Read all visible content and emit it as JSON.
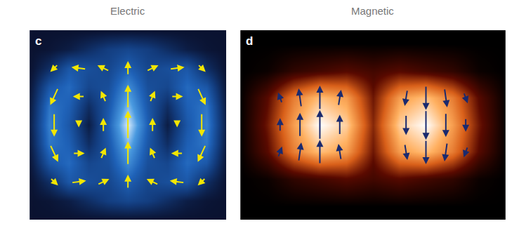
{
  "chart_data": [
    {
      "type": "heatmap",
      "title": "Electric",
      "panel_label": "c",
      "tick_labels": false,
      "xlim": [
        -1,
        1
      ],
      "ylim": [
        -1,
        1
      ],
      "colors": [
        "#0a1230",
        "#123a7a",
        "#1f62b8",
        "#4a9ae0",
        "#d8ecff"
      ],
      "x": [
        -1,
        -0.8,
        -0.6,
        -0.4,
        -0.2,
        0,
        0.2,
        0.4,
        0.6,
        0.8,
        1
      ],
      "y": [
        -1,
        -0.8,
        -0.6,
        -0.4,
        -0.2,
        0,
        0.2,
        0.4,
        0.6,
        0.8,
        1
      ],
      "z": [
        [
          0.03,
          0.03,
          0.03,
          0.03,
          0.03,
          0.03,
          0.03,
          0.03,
          0.03,
          0.03,
          0.03
        ],
        [
          0.03,
          0.05,
          0.1,
          0.2,
          0.3,
          0.35,
          0.3,
          0.2,
          0.1,
          0.05,
          0.03
        ],
        [
          0.03,
          0.2,
          0.45,
          0.4,
          0.35,
          0.5,
          0.35,
          0.4,
          0.45,
          0.2,
          0.03
        ],
        [
          0.05,
          0.45,
          0.55,
          0.35,
          0.4,
          0.7,
          0.4,
          0.35,
          0.55,
          0.45,
          0.05
        ],
        [
          0.08,
          0.6,
          0.5,
          0.2,
          0.45,
          0.85,
          0.45,
          0.2,
          0.5,
          0.6,
          0.08
        ],
        [
          0.1,
          0.65,
          0.45,
          0.1,
          0.5,
          1.0,
          0.5,
          0.1,
          0.45,
          0.65,
          0.1
        ],
        [
          0.08,
          0.6,
          0.5,
          0.2,
          0.45,
          0.85,
          0.45,
          0.2,
          0.5,
          0.6,
          0.08
        ],
        [
          0.05,
          0.45,
          0.55,
          0.35,
          0.4,
          0.7,
          0.4,
          0.35,
          0.55,
          0.45,
          0.05
        ],
        [
          0.03,
          0.2,
          0.45,
          0.4,
          0.35,
          0.5,
          0.35,
          0.4,
          0.45,
          0.2,
          0.03
        ],
        [
          0.03,
          0.05,
          0.1,
          0.2,
          0.3,
          0.35,
          0.3,
          0.2,
          0.1,
          0.05,
          0.03
        ],
        [
          0.03,
          0.03,
          0.03,
          0.03,
          0.03,
          0.03,
          0.03,
          0.03,
          0.03,
          0.03,
          0.03
        ]
      ],
      "arrows": {
        "color": "#f2e600",
        "vectors": [
          [
            -0.75,
            0.6,
            -0.08,
            -0.08
          ],
          [
            -0.5,
            0.6,
            -0.15,
            0.02
          ],
          [
            -0.25,
            0.6,
            -0.12,
            0.06
          ],
          [
            0,
            0.6,
            0,
            0.15
          ],
          [
            0.25,
            0.6,
            0.12,
            0.06
          ],
          [
            0.5,
            0.6,
            0.15,
            0.02
          ],
          [
            0.75,
            0.6,
            0.08,
            -0.08
          ],
          [
            -0.75,
            0.3,
            -0.08,
            -0.18
          ],
          [
            -0.5,
            0.3,
            -0.12,
            0
          ],
          [
            -0.25,
            0.3,
            -0.05,
            0.12
          ],
          [
            0,
            0.3,
            0,
            0.25
          ],
          [
            0.25,
            0.3,
            0.05,
            0.12
          ],
          [
            0.5,
            0.3,
            0.12,
            0
          ],
          [
            0.75,
            0.3,
            0.08,
            -0.18
          ],
          [
            -0.75,
            0,
            0,
            -0.25
          ],
          [
            -0.5,
            0,
            0,
            -0.05
          ],
          [
            -0.25,
            0,
            0,
            0.15
          ],
          [
            0,
            0,
            0,
            0.3
          ],
          [
            0.25,
            0,
            0,
            0.15
          ],
          [
            0.5,
            0,
            0,
            -0.05
          ],
          [
            0.75,
            0,
            0,
            -0.25
          ],
          [
            -0.75,
            -0.3,
            0.08,
            -0.18
          ],
          [
            -0.5,
            -0.3,
            0.12,
            0
          ],
          [
            -0.25,
            -0.3,
            0.05,
            0.12
          ],
          [
            0,
            -0.3,
            0,
            0.25
          ],
          [
            0.25,
            -0.3,
            -0.05,
            0.12
          ],
          [
            0.5,
            -0.3,
            -0.12,
            0
          ],
          [
            0.75,
            -0.3,
            -0.08,
            -0.18
          ],
          [
            -0.75,
            -0.6,
            0.08,
            -0.08
          ],
          [
            -0.5,
            -0.6,
            0.15,
            0.02
          ],
          [
            -0.25,
            -0.6,
            0.12,
            0.06
          ],
          [
            0,
            -0.6,
            0,
            0.15
          ],
          [
            0.25,
            -0.6,
            -0.12,
            0.06
          ],
          [
            0.5,
            -0.6,
            -0.15,
            0.02
          ],
          [
            0.75,
            -0.6,
            -0.08,
            -0.08
          ]
        ]
      }
    },
    {
      "type": "heatmap",
      "title": "Magnetic",
      "panel_label": "d",
      "tick_labels": false,
      "xlim": [
        -1,
        1
      ],
      "ylim": [
        -0.7,
        0.7
      ],
      "colors": [
        "#000000",
        "#5a0a00",
        "#d9601a",
        "#ffb060",
        "#ffffff"
      ],
      "x": [
        -1,
        -0.8,
        -0.6,
        -0.4,
        -0.2,
        0,
        0.2,
        0.4,
        0.6,
        0.8,
        1
      ],
      "y": [
        -0.6,
        -0.4,
        -0.2,
        0,
        0.2,
        0.4,
        0.6
      ],
      "z": [
        [
          0.02,
          0.02,
          0.02,
          0.02,
          0.02,
          0.02,
          0.02,
          0.02,
          0.02,
          0.02,
          0.02
        ],
        [
          0.02,
          0.05,
          0.15,
          0.2,
          0.25,
          0.2,
          0.25,
          0.2,
          0.15,
          0.05,
          0.02
        ],
        [
          0.03,
          0.25,
          0.6,
          0.8,
          0.7,
          0.3,
          0.7,
          0.8,
          0.6,
          0.25,
          0.03
        ],
        [
          0.03,
          0.3,
          0.7,
          1.0,
          0.85,
          0.35,
          0.85,
          1.0,
          0.7,
          0.3,
          0.03
        ],
        [
          0.03,
          0.25,
          0.6,
          0.8,
          0.7,
          0.3,
          0.7,
          0.8,
          0.6,
          0.25,
          0.03
        ],
        [
          0.02,
          0.05,
          0.15,
          0.2,
          0.25,
          0.2,
          0.25,
          0.2,
          0.15,
          0.05,
          0.02
        ],
        [
          0.02,
          0.02,
          0.02,
          0.02,
          0.02,
          0.02,
          0.02,
          0.02,
          0.02,
          0.02,
          0.02
        ]
      ],
      "arrows": {
        "color": "#1a2a6e",
        "vectors": [
          [
            -0.7,
            -0.2,
            0.03,
            0.08
          ],
          [
            -0.7,
            0,
            0,
            0.1
          ],
          [
            -0.7,
            0.2,
            -0.03,
            0.08
          ],
          [
            -0.55,
            -0.2,
            0.02,
            0.14
          ],
          [
            -0.55,
            0,
            0,
            0.18
          ],
          [
            -0.55,
            0.2,
            -0.02,
            0.14
          ],
          [
            -0.4,
            -0.2,
            0,
            0.18
          ],
          [
            -0.4,
            0,
            0,
            0.22
          ],
          [
            -0.4,
            0.2,
            0,
            0.18
          ],
          [
            -0.25,
            -0.2,
            -0.02,
            0.12
          ],
          [
            -0.25,
            0,
            0,
            0.15
          ],
          [
            -0.25,
            0.2,
            0.02,
            0.12
          ],
          [
            0.25,
            -0.2,
            0.02,
            -0.12
          ],
          [
            0.25,
            0,
            0,
            -0.15
          ],
          [
            0.25,
            0.2,
            -0.02,
            -0.12
          ],
          [
            0.4,
            -0.2,
            0,
            -0.18
          ],
          [
            0.4,
            0,
            0,
            -0.22
          ],
          [
            0.4,
            0.2,
            0,
            -0.18
          ],
          [
            0.55,
            -0.2,
            -0.02,
            -0.14
          ],
          [
            0.55,
            0,
            0,
            -0.18
          ],
          [
            0.55,
            0.2,
            0.02,
            -0.14
          ],
          [
            0.7,
            -0.2,
            -0.03,
            -0.08
          ],
          [
            0.7,
            0,
            0,
            -0.1
          ],
          [
            0.7,
            0.2,
            0.03,
            -0.08
          ]
        ]
      }
    }
  ]
}
